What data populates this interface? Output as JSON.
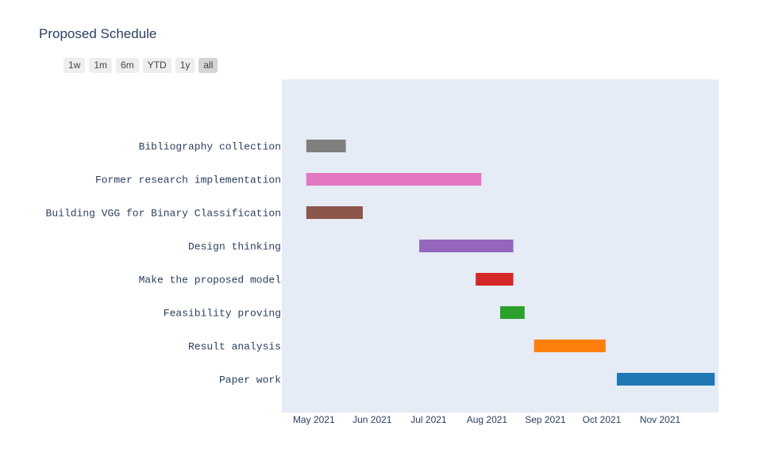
{
  "title": "Proposed Schedule",
  "range_selector": {
    "buttons": [
      {
        "label": "1w",
        "active": false
      },
      {
        "label": "1m",
        "active": false
      },
      {
        "label": "6m",
        "active": false
      },
      {
        "label": "YTD",
        "active": false
      },
      {
        "label": "1y",
        "active": false
      },
      {
        "label": "all",
        "active": true
      }
    ]
  },
  "chart_data": {
    "type": "gantt",
    "title": "Proposed Schedule",
    "x_range": [
      "2021-04-14",
      "2021-12-02"
    ],
    "x_ticks": [
      {
        "date": "2021-05-01",
        "label": "May 2021"
      },
      {
        "date": "2021-06-01",
        "label": "Jun 2021"
      },
      {
        "date": "2021-07-01",
        "label": "Jul 2021"
      },
      {
        "date": "2021-08-01",
        "label": "Aug 2021"
      },
      {
        "date": "2021-09-01",
        "label": "Sep 2021"
      },
      {
        "date": "2021-10-01",
        "label": "Oct 2021"
      },
      {
        "date": "2021-11-01",
        "label": "Nov 2021"
      }
    ],
    "tasks": [
      {
        "name": "Bibliography collection",
        "start": "2021-04-27",
        "end": "2021-05-18",
        "color": "#7f7f7f"
      },
      {
        "name": "Former research implementation",
        "start": "2021-04-27",
        "end": "2021-07-29",
        "color": "#e377c2"
      },
      {
        "name": "Building VGG for Binary Classification",
        "start": "2021-04-27",
        "end": "2021-05-27",
        "color": "#8c564b"
      },
      {
        "name": "Design thinking",
        "start": "2021-06-26",
        "end": "2021-08-15",
        "color": "#9467bd"
      },
      {
        "name": "Make the proposed model",
        "start": "2021-07-26",
        "end": "2021-08-15",
        "color": "#d62728"
      },
      {
        "name": "Feasibility proving",
        "start": "2021-08-08",
        "end": "2021-08-21",
        "color": "#2ca02c"
      },
      {
        "name": "Result analysis",
        "start": "2021-08-26",
        "end": "2021-10-03",
        "color": "#ff7f0e"
      },
      {
        "name": "Paper work",
        "start": "2021-10-09",
        "end": "2021-11-30",
        "color": "#1f77b4"
      }
    ],
    "plot_background": "#e5ecf6",
    "grid": false
  }
}
